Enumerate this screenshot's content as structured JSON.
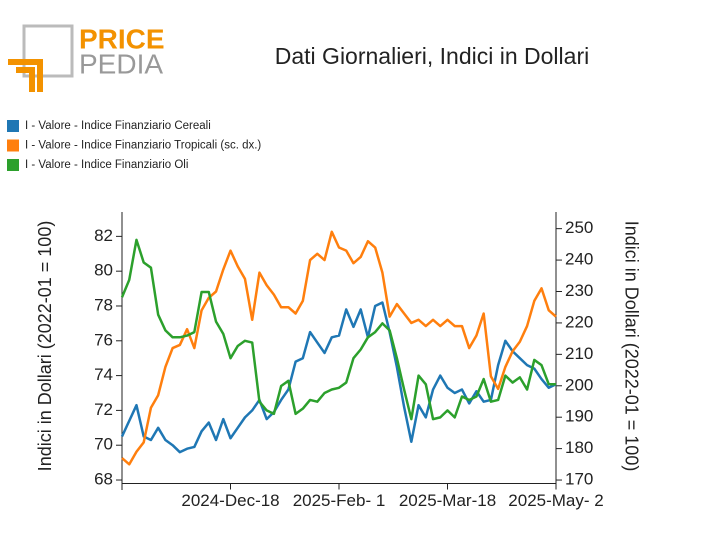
{
  "logo": {
    "top": "PRICE",
    "bottom": "PEDIA"
  },
  "chart_data": {
    "type": "line",
    "title": "Dati Giornalieri, Indici in Dollari",
    "ylabel": "Indici in Dollari (2022-01 = 100)",
    "y2label": "Indici in Dollari (2022-01 = 100)",
    "categories": [
      null,
      null,
      null,
      null,
      null,
      null,
      null,
      null,
      null,
      null,
      null,
      null,
      null,
      null,
      null,
      "2024-Dec-18",
      null,
      null,
      null,
      null,
      null,
      null,
      null,
      null,
      null,
      null,
      null,
      null,
      null,
      null,
      "2025-Feb- 1",
      null,
      null,
      null,
      null,
      null,
      null,
      null,
      null,
      null,
      null,
      null,
      null,
      null,
      null,
      "2025-Mar-18",
      null,
      null,
      null,
      null,
      null,
      null,
      null,
      null,
      null,
      null,
      null,
      null,
      null,
      null,
      "2025-May- 2"
    ],
    "ylim": [
      67.8,
      83.4
    ],
    "yticks": [
      68,
      70,
      72,
      74,
      76,
      78,
      80,
      82
    ],
    "y2lim": [
      168.9,
      255.3
    ],
    "y2ticks": [
      170,
      180,
      190,
      200,
      210,
      220,
      230,
      240,
      250
    ],
    "legend": "top-left",
    "series": [
      {
        "name": "I - Valore - Indice Finanziario Cereali",
        "color": "#1f77b4",
        "values": [
          70.5,
          71.4,
          72.3,
          70.5,
          70.3,
          71,
          70.3,
          70,
          69.6,
          69.8,
          69.9,
          70.8,
          71.3,
          70.3,
          71.5,
          70.4,
          71,
          71.6,
          72,
          72.6,
          71.5,
          71.9,
          72.6,
          73.2,
          74.8,
          75,
          76.5,
          75.9,
          75.3,
          76.2,
          76.3,
          77.8,
          76.8,
          77.8,
          76.2,
          78,
          78.2,
          76.5,
          74.5,
          72.2,
          70.2,
          72.3,
          71.6,
          73.2,
          74,
          73.3,
          73,
          73.2,
          72.4,
          73.1,
          72.5,
          72.6,
          74.6,
          76,
          75.4,
          75,
          74.6,
          74.4,
          73.8,
          73.3,
          73.5
        ]
      },
      {
        "name": "I - Valore - Indice Finanziario Tropicali (sc. dx.)",
        "color": "#ff7f0e",
        "axis": "y2",
        "values": [
          177,
          175,
          179,
          182,
          193,
          197,
          206,
          212,
          213,
          218,
          212,
          224,
          228,
          230,
          237,
          243,
          238,
          234,
          221,
          236,
          232,
          229,
          225,
          225,
          223,
          227,
          240,
          242,
          240,
          249,
          244,
          243,
          239,
          241,
          246,
          244,
          236,
          222,
          226,
          223,
          220,
          221,
          219,
          221,
          219,
          221,
          219,
          219,
          212,
          216,
          223,
          203,
          199,
          206,
          211,
          214,
          219,
          227,
          231,
          224,
          222
        ]
      },
      {
        "name": "I - Valore - Indice Finanziario Oli",
        "color": "#2ca02c",
        "values": [
          78.5,
          79.5,
          81.8,
          80.5,
          80.2,
          77.5,
          76.6,
          76.2,
          76.2,
          76.3,
          76.5,
          78.8,
          78.8,
          77.1,
          76.4,
          75,
          75.7,
          76,
          75.9,
          72.5,
          72,
          71.8,
          73.4,
          73.7,
          71.8,
          72.1,
          72.6,
          72.5,
          73,
          73.2,
          73.3,
          73.6,
          75,
          75.5,
          76.2,
          76.5,
          77,
          76.6,
          75,
          73.2,
          71.5,
          74,
          73.5,
          71.5,
          71.6,
          72,
          71.6,
          72.8,
          72.6,
          72.8,
          73.8,
          72.5,
          72.6,
          74,
          73.6,
          73.9,
          73.2,
          74.9,
          74.6,
          73.5,
          73.5
        ]
      }
    ]
  }
}
